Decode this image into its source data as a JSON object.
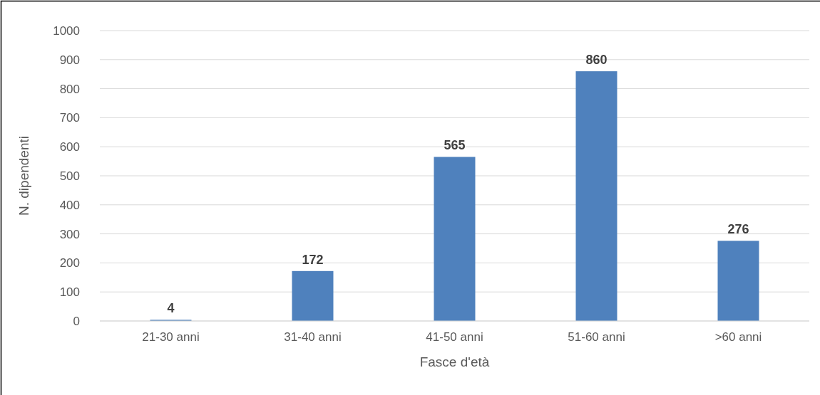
{
  "chart_data": {
    "type": "bar",
    "xlabel": "Fasce d'età",
    "ylabel": "N. dipendenti",
    "categories": [
      "21-30 anni",
      "31-40 anni",
      "41-50 anni",
      "51-60 anni",
      ">60 anni"
    ],
    "values": [
      4,
      172,
      565,
      860,
      276
    ],
    "color": "#4f81bd",
    "ylim": [
      0,
      1000
    ],
    "yticks": [
      0,
      100,
      200,
      300,
      400,
      500,
      600,
      700,
      800,
      900,
      1000
    ],
    "grid": "y",
    "data_labels": true
  }
}
